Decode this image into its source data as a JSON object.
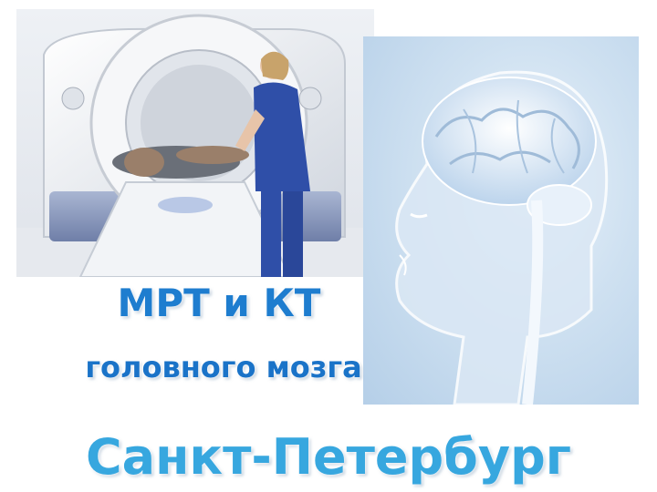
{
  "headline": {
    "line1": "МРТ и КТ",
    "line2": "головного мозга",
    "city": "Санкт-Петербург"
  },
  "colors": {
    "title_blue": "#1e7dcf",
    "city_blue": "#37a7df",
    "scrubs": "#2f4fa8"
  },
  "images": {
    "left": "ct-scanner-photo",
    "right": "brain-anatomy-illustration"
  }
}
